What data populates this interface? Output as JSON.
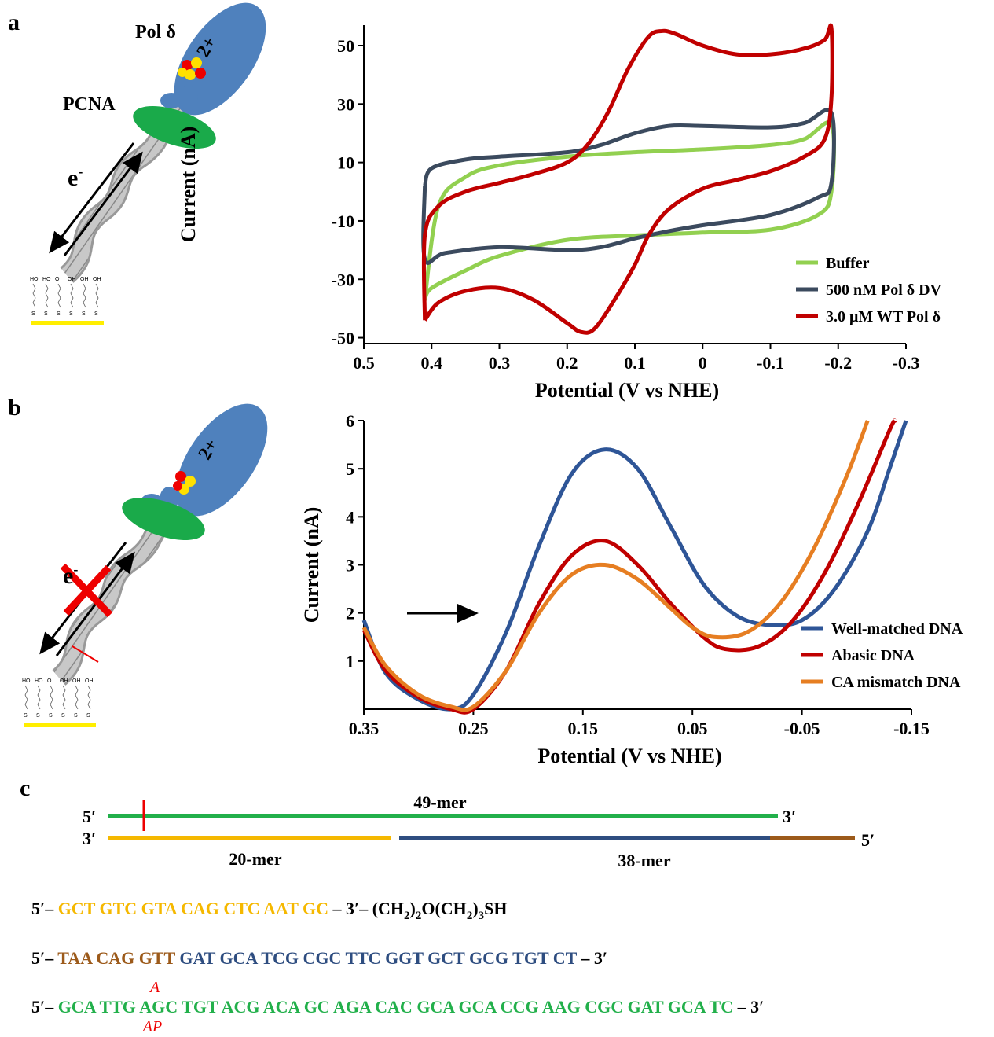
{
  "panels": {
    "a": "a",
    "b": "b",
    "c": "c"
  },
  "diagram": {
    "pol": "Pol δ",
    "pcna": "PCNA",
    "electron": "e",
    "electron_sup": "-",
    "charge": "2+",
    "surface_groups": [
      "HO",
      "HO",
      "O",
      "OH",
      "OH",
      "OH"
    ],
    "surface_anchor": "S"
  },
  "chart_data": [
    {
      "type": "line",
      "x_label": "Potential (V vs NHE)",
      "y_label": "Current (nA)",
      "xlim": [
        0.5,
        -0.3
      ],
      "xticks": [
        0.5,
        0.4,
        0.3,
        0.2,
        0.1,
        0,
        -0.1,
        -0.2,
        -0.3
      ],
      "ylim": [
        -52,
        57
      ],
      "yticks": [
        -50,
        -30,
        -10,
        10,
        30,
        50
      ],
      "legend": "lower right",
      "series": [
        {
          "name": "Buffer",
          "color": "#92d050",
          "x": [
            0.41,
            0.39,
            0.35,
            0.3,
            0.2,
            0.1,
            0,
            -0.1,
            -0.15,
            -0.19,
            -0.19,
            -0.17,
            -0.1,
            0,
            0.1,
            0.2,
            0.3,
            0.35,
            0.4,
            0.41
          ],
          "values": [
            -37,
            -5,
            5,
            9,
            12,
            13.5,
            14.5,
            16,
            18,
            23,
            0,
            -8,
            -13,
            -14,
            -15,
            -16.5,
            -22,
            -27,
            -33,
            -37
          ]
        },
        {
          "name": "500 nM Pol δ DV",
          "color": "#3b4a5e",
          "x": [
            0.41,
            0.4,
            0.35,
            0.3,
            0.2,
            0.15,
            0.1,
            0.05,
            0,
            -0.1,
            -0.15,
            -0.19,
            -0.19,
            -0.17,
            -0.1,
            0,
            0.05,
            0.1,
            0.15,
            0.2,
            0.3,
            0.38,
            0.41,
            0.41
          ],
          "values": [
            2,
            8,
            11,
            12,
            13.5,
            16,
            20,
            22.5,
            22.5,
            22,
            23.5,
            27,
            3,
            -2,
            -8,
            -11.5,
            -13.5,
            -16,
            -19,
            -20,
            -19,
            -21,
            -23,
            2
          ]
        },
        {
          "name": "3.0 μM WT Pol δ",
          "color": "#c00000",
          "x": [
            0.41,
            0.41,
            0.39,
            0.35,
            0.3,
            0.25,
            0.2,
            0.17,
            0.14,
            0.11,
            0.08,
            0.06,
            0.04,
            0,
            -0.05,
            -0.1,
            -0.15,
            -0.18,
            -0.19,
            -0.19,
            -0.18,
            -0.15,
            -0.1,
            -0.05,
            0,
            0.05,
            0.08,
            0.1,
            0.13,
            0.16,
            0.18,
            0.2,
            0.25,
            0.3,
            0.35,
            0.39,
            0.41
          ],
          "values": [
            -44,
            -15,
            -5,
            0,
            3,
            6,
            10,
            16,
            27,
            42,
            53,
            55,
            54,
            50,
            47,
            47,
            49,
            52,
            56,
            32,
            18,
            12,
            7,
            4,
            1,
            -6,
            -15,
            -25,
            -37,
            -47,
            -48,
            -45,
            -37,
            -33,
            -34,
            -38,
            -44
          ]
        }
      ]
    },
    {
      "type": "line",
      "x_label": "Potential (V vs NHE)",
      "y_label": "Current (nA)",
      "xlim": [
        0.35,
        -0.15
      ],
      "xticks": [
        0.35,
        0.25,
        0.15,
        0.05,
        -0.05,
        -0.15
      ],
      "ylim": [
        0,
        6
      ],
      "yticks": [
        1,
        2,
        3,
        4,
        5,
        6
      ],
      "legend": "lower right",
      "series": [
        {
          "name": "Well-matched DNA",
          "color": "#2e5597",
          "x": [
            0.35,
            0.33,
            0.3,
            0.27,
            0.25,
            0.22,
            0.19,
            0.16,
            0.13,
            0.1,
            0.07,
            0.04,
            0.01,
            -0.02,
            -0.05,
            -0.08,
            -0.11,
            -0.13,
            -0.145
          ],
          "values": [
            1.85,
            0.75,
            0.2,
            0,
            0.3,
            1.6,
            3.4,
            4.9,
            5.4,
            5,
            3.8,
            2.6,
            1.95,
            1.75,
            1.85,
            2.5,
            3.7,
            5,
            6
          ]
        },
        {
          "name": "Abasic DNA",
          "color": "#c00000",
          "x": [
            0.35,
            0.33,
            0.3,
            0.27,
            0.25,
            0.22,
            0.19,
            0.16,
            0.13,
            0.1,
            0.07,
            0.04,
            0.02,
            -0.01,
            -0.04,
            -0.07,
            -0.1,
            -0.13,
            -0.135
          ],
          "values": [
            1.65,
            0.8,
            0.25,
            0,
            0,
            0.8,
            2.2,
            3.2,
            3.5,
            3,
            2.2,
            1.5,
            1.25,
            1.3,
            1.8,
            2.8,
            4.2,
            5.8,
            6
          ]
        },
        {
          "name": "CA mismatch DNA",
          "color": "#e67e22",
          "x": [
            0.35,
            0.33,
            0.3,
            0.27,
            0.25,
            0.22,
            0.19,
            0.16,
            0.13,
            0.1,
            0.07,
            0.05,
            0.03,
            0,
            -0.03,
            -0.06,
            -0.09,
            -0.11
          ],
          "values": [
            1.7,
            0.9,
            0.3,
            0.05,
            0.05,
            0.8,
            2,
            2.8,
            3,
            2.7,
            2.1,
            1.7,
            1.5,
            1.6,
            2.2,
            3.3,
            4.8,
            6
          ]
        }
      ]
    }
  ],
  "strands": {
    "top_5": "5′",
    "top_3": "3′",
    "top_len": "49-mer",
    "bottom_3": "3′",
    "bottom_5": "5′",
    "left_len": "20-mer",
    "right_len": "38-mer"
  },
  "sequences": [
    {
      "start": "5′–",
      "seq": "GCT GTC GTA CAG CTC AAT GC",
      "linker": [
        "– 3′– (CH",
        "2",
        ")",
        "2",
        "O(CH",
        "2",
        ")",
        "3",
        "SH"
      ]
    },
    {
      "start": "5′–",
      "seq_a": "TAA CAG GTT",
      "seq_b": "GAT GCA TCG CGC TTC GGT GCT GCG TGT CT",
      "end": "– 3′"
    },
    {
      "start": "5′–",
      "seq_a": "GCA TTG",
      "seq_b": "AGC TGT ACG ACA GC AGA CAC GCA GCA CCG AAG CGC GAT GCA TC",
      "end": "– 3′",
      "above": "A",
      "below": "AP"
    }
  ]
}
